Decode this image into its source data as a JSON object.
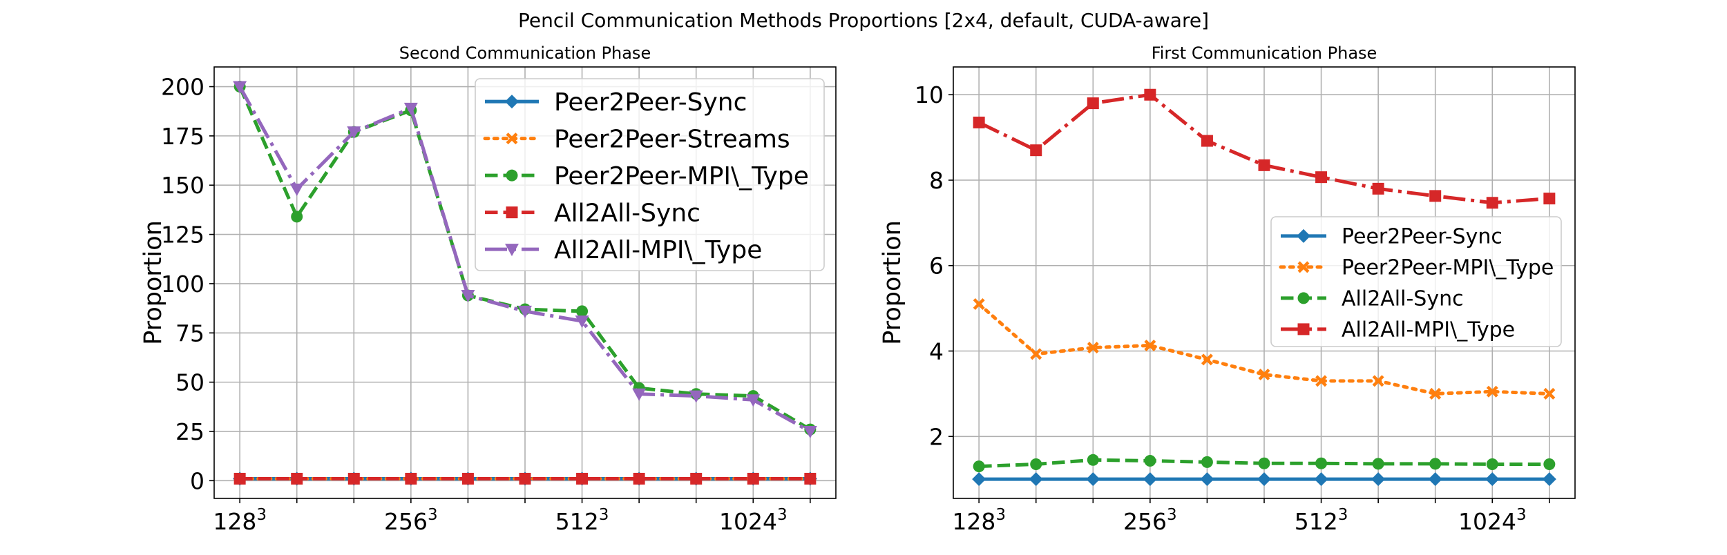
{
  "figure": {
    "suptitle": "Pencil Communication Methods Proportions [2x4, default, CUDA-aware]"
  },
  "chart_data": [
    {
      "type": "line",
      "title": "Second Communication Phase",
      "xlabel": "",
      "ylabel": "Proportion",
      "x": [
        1,
        2,
        3,
        4,
        5,
        6,
        7,
        8,
        9,
        10,
        11
      ],
      "xticks": [
        {
          "x": 1,
          "base": "128",
          "exp": "3"
        },
        {
          "x": 4,
          "base": "256",
          "exp": "3"
        },
        {
          "x": 7,
          "base": "512",
          "exp": "3"
        },
        {
          "x": 10,
          "base": "1024",
          "exp": "3"
        }
      ],
      "xlim": [
        0.55,
        11.45
      ],
      "ylim": [
        -9,
        210
      ],
      "yticks": [
        0,
        25,
        50,
        75,
        100,
        125,
        150,
        175,
        200
      ],
      "grid": true,
      "legend_position": "upper right",
      "series": [
        {
          "name": "Peer2Peer-Sync",
          "color": "#1f77b4",
          "dash": "solid",
          "marker": "diamond",
          "values": [
            1,
            1,
            1,
            1,
            1,
            1,
            1,
            1,
            1,
            1,
            1
          ]
        },
        {
          "name": "Peer2Peer-Streams",
          "color": "#ff7f0e",
          "dash": "dotted",
          "marker": "x",
          "values": [
            1,
            1,
            1,
            1,
            1,
            1,
            1,
            1,
            1,
            1,
            1
          ]
        },
        {
          "name": "Peer2Peer-MPI\\_Type",
          "color": "#2ca02c",
          "dash": "dashed",
          "marker": "circle",
          "values": [
            200,
            134,
            177,
            188,
            94,
            87,
            86,
            47,
            44,
            43,
            26
          ]
        },
        {
          "name": "All2All-Sync",
          "color": "#d62728",
          "dash": "dashed",
          "marker": "square",
          "values": [
            1,
            1,
            1,
            1,
            1,
            1,
            1,
            1,
            1,
            1,
            1
          ]
        },
        {
          "name": "All2All-MPI\\_Type",
          "color": "#9467bd",
          "dash": "dashdot",
          "marker": "triangle-down",
          "values": [
            200,
            148,
            177,
            189,
            94,
            86,
            81,
            44,
            43,
            41,
            25
          ]
        }
      ]
    },
    {
      "type": "line",
      "title": "First Communication Phase",
      "xlabel": "",
      "ylabel": "Proportion",
      "x": [
        1,
        2,
        3,
        4,
        5,
        6,
        7,
        8,
        9,
        10,
        11
      ],
      "xticks": [
        {
          "x": 1,
          "base": "128",
          "exp": "3"
        },
        {
          "x": 4,
          "base": "256",
          "exp": "3"
        },
        {
          "x": 7,
          "base": "512",
          "exp": "3"
        },
        {
          "x": 10,
          "base": "1024",
          "exp": "3"
        }
      ],
      "xlim": [
        0.55,
        11.45
      ],
      "ylim": [
        0.55,
        10.65
      ],
      "yticks": [
        2,
        4,
        6,
        8,
        10
      ],
      "grid": true,
      "legend_position": "center right",
      "series": [
        {
          "name": "Peer2Peer-Sync",
          "color": "#1f77b4",
          "dash": "solid",
          "marker": "diamond",
          "values": [
            1,
            1,
            1,
            1,
            1,
            1,
            1,
            1,
            1,
            1,
            1
          ]
        },
        {
          "name": "Peer2Peer-MPI\\_Type",
          "color": "#ff7f0e",
          "dash": "dotted",
          "marker": "x",
          "values": [
            5.1,
            3.93,
            4.08,
            4.13,
            3.8,
            3.45,
            3.3,
            3.3,
            3.0,
            3.05,
            3.0
          ]
        },
        {
          "name": "All2All-Sync",
          "color": "#2ca02c",
          "dash": "dashed",
          "marker": "circle",
          "values": [
            1.3,
            1.35,
            1.45,
            1.43,
            1.4,
            1.37,
            1.37,
            1.36,
            1.36,
            1.35,
            1.35
          ]
        },
        {
          "name": "All2All-MPI\\_Type",
          "color": "#d62728",
          "dash": "dashdot",
          "marker": "square",
          "values": [
            9.35,
            8.7,
            9.8,
            10.0,
            8.92,
            8.35,
            8.07,
            7.8,
            7.63,
            7.47,
            7.57
          ]
        }
      ]
    }
  ]
}
